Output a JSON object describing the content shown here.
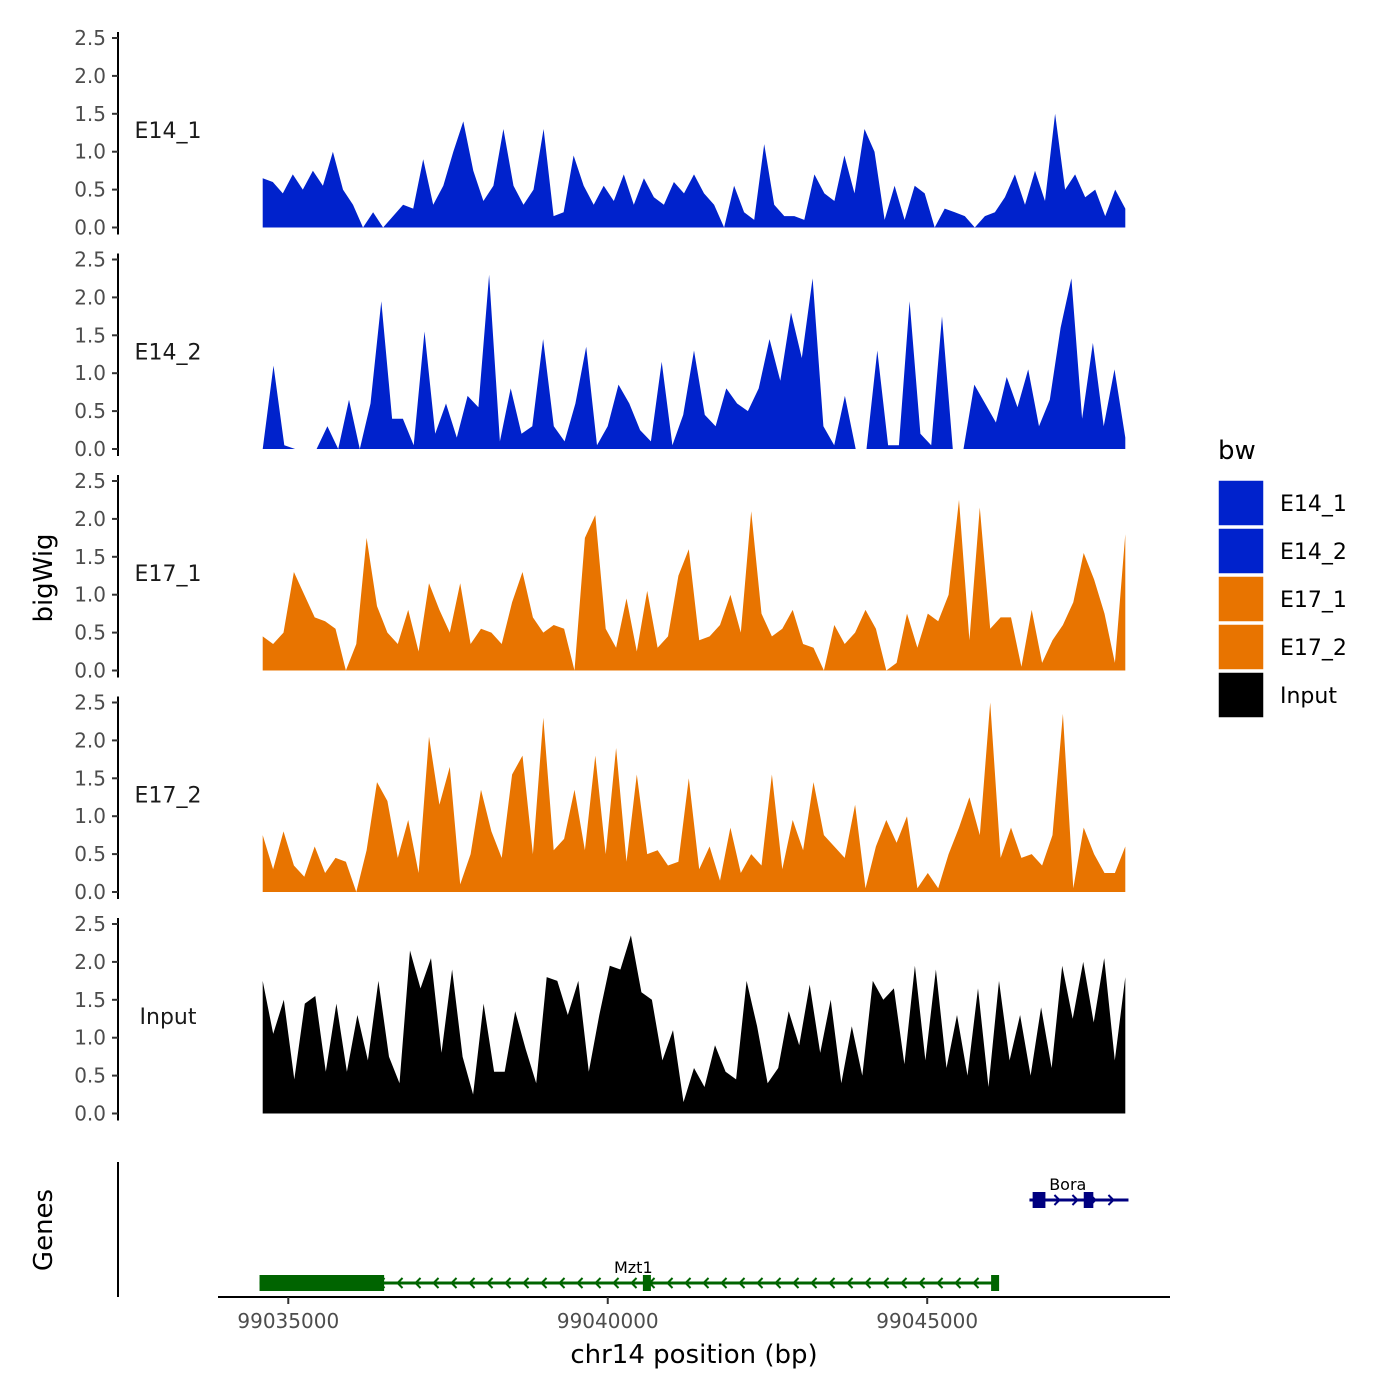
{
  "chart_data": {
    "type": "area",
    "y_axis_title": "bigWig",
    "x_axis_title": "chr14 position (bp)",
    "genes_axis_title": "Genes",
    "xlim": [
      99033900,
      99048800
    ],
    "data_start": 99034600,
    "data_end": 99048100,
    "x_ticks": [
      99035000,
      99040000,
      99045000
    ],
    "x_tick_labels": [
      "99035000",
      "99040000",
      "99045000"
    ],
    "ylim": [
      0,
      2.5
    ],
    "y_ticks": [
      0.0,
      0.5,
      1.0,
      1.5,
      2.0,
      2.5
    ],
    "y_tick_labels": [
      "0.0",
      "0.5",
      "1.0",
      "1.5",
      "2.0",
      "2.5"
    ],
    "legend": {
      "title": "bw",
      "entries": [
        {
          "label": "E14_1",
          "color": "#0022CC"
        },
        {
          "label": "E14_2",
          "color": "#0022CC"
        },
        {
          "label": "E17_1",
          "color": "#E87400"
        },
        {
          "label": "E17_2",
          "color": "#E87400"
        },
        {
          "label": "Input",
          "color": "#000000"
        }
      ]
    },
    "series": [
      {
        "name": "E14_1",
        "color": "#0022CC",
        "values": [
          0.65,
          0.6,
          0.45,
          0.7,
          0.5,
          0.75,
          0.55,
          1.0,
          0.5,
          0.3,
          0,
          0.2,
          0,
          0.15,
          0.3,
          0.25,
          0.9,
          0.3,
          0.55,
          1.0,
          1.4,
          0.75,
          0.35,
          0.55,
          1.3,
          0.55,
          0.3,
          0.5,
          1.3,
          0.15,
          0.2,
          0.95,
          0.55,
          0.3,
          0.55,
          0.35,
          0.7,
          0.3,
          0.65,
          0.4,
          0.3,
          0.6,
          0.45,
          0.7,
          0.45,
          0.3,
          0,
          0.55,
          0.2,
          0.1,
          1.1,
          0.3,
          0.15,
          0.15,
          0.1,
          0.7,
          0.45,
          0.35,
          0.95,
          0.45,
          1.3,
          1.0,
          0.1,
          0.55,
          0.1,
          0.55,
          0.45,
          0,
          0.25,
          0.2,
          0.15,
          0,
          0.15,
          0.2,
          0.4,
          0.7,
          0.3,
          0.75,
          0.35,
          1.5,
          0.5,
          0.7,
          0.4,
          0.5,
          0.15,
          0.5,
          0.25
        ]
      },
      {
        "name": "E14_2",
        "color": "#0022CC",
        "values": [
          0,
          1.1,
          0.05,
          0,
          0,
          0,
          0.3,
          0,
          0.65,
          0,
          0.6,
          1.95,
          0.4,
          0.4,
          0.05,
          1.55,
          0.2,
          0.6,
          0.15,
          0.7,
          0.55,
          2.3,
          0.1,
          0.8,
          0.2,
          0.3,
          1.45,
          0.3,
          0.1,
          0.6,
          1.35,
          0.05,
          0.3,
          0.85,
          0.6,
          0.25,
          0.1,
          1.15,
          0.05,
          0.45,
          1.3,
          0.45,
          0.3,
          0.8,
          0.6,
          0.5,
          0.8,
          1.45,
          0.9,
          1.8,
          1.2,
          2.25,
          0.3,
          0.05,
          0.7,
          0,
          0,
          1.3,
          0.05,
          0.05,
          1.95,
          0.2,
          0.05,
          1.75,
          0,
          0,
          0.85,
          0.6,
          0.35,
          0.95,
          0.55,
          1.05,
          0.3,
          0.65,
          1.6,
          2.25,
          0.4,
          1.4,
          0.3,
          1.05,
          0.15
        ]
      },
      {
        "name": "E17_1",
        "color": "#E87400",
        "values": [
          0.45,
          0.35,
          0.5,
          1.3,
          1.0,
          0.7,
          0.65,
          0.55,
          0,
          0.35,
          1.75,
          0.85,
          0.5,
          0.35,
          0.8,
          0.25,
          1.15,
          0.8,
          0.5,
          1.15,
          0.35,
          0.55,
          0.5,
          0.35,
          0.9,
          1.3,
          0.7,
          0.5,
          0.6,
          0.55,
          0,
          1.75,
          2.05,
          0.55,
          0.3,
          0.95,
          0.25,
          1.05,
          0.3,
          0.45,
          1.25,
          1.6,
          0.4,
          0.45,
          0.6,
          1.0,
          0.5,
          2.1,
          0.75,
          0.45,
          0.55,
          0.8,
          0.35,
          0.3,
          0,
          0.6,
          0.35,
          0.5,
          0.8,
          0.55,
          0,
          0.1,
          0.75,
          0.3,
          0.75,
          0.65,
          1.0,
          2.25,
          0.4,
          2.15,
          0.55,
          0.7,
          0.7,
          0.05,
          0.8,
          0.1,
          0.4,
          0.6,
          0.9,
          1.55,
          1.2,
          0.75,
          0.1,
          1.8
        ]
      },
      {
        "name": "E17_2",
        "color": "#E87400",
        "values": [
          0.75,
          0.3,
          0.8,
          0.35,
          0.2,
          0.6,
          0.25,
          0.45,
          0.4,
          0,
          0.55,
          1.45,
          1.2,
          0.45,
          0.95,
          0.25,
          2.05,
          1.15,
          1.65,
          0.1,
          0.5,
          1.35,
          0.8,
          0.45,
          1.55,
          1.8,
          0.5,
          2.3,
          0.55,
          0.7,
          1.35,
          0.55,
          1.8,
          0.5,
          1.9,
          0.4,
          1.55,
          0.5,
          0.55,
          0.35,
          0.4,
          1.5,
          0.3,
          0.6,
          0.15,
          0.85,
          0.25,
          0.5,
          0.35,
          1.55,
          0.3,
          0.95,
          0.55,
          1.45,
          0.75,
          0.6,
          0.45,
          1.15,
          0.05,
          0.6,
          0.95,
          0.65,
          1.0,
          0.05,
          0.25,
          0.05,
          0.5,
          0.85,
          1.25,
          0.75,
          2.5,
          0.45,
          0.85,
          0.45,
          0.5,
          0.35,
          0.75,
          2.35,
          0.05,
          0.85,
          0.5,
          0.25,
          0.25,
          0.6
        ]
      },
      {
        "name": "Input",
        "color": "#000000",
        "values": [
          1.75,
          1.05,
          1.5,
          0.45,
          1.45,
          1.55,
          0.55,
          1.45,
          0.55,
          1.3,
          0.7,
          1.75,
          0.75,
          0.4,
          2.15,
          1.65,
          2.05,
          0.8,
          1.9,
          0.75,
          0.25,
          1.45,
          0.55,
          0.55,
          1.35,
          0.85,
          0.4,
          1.8,
          1.75,
          1.3,
          1.75,
          0.55,
          1.3,
          1.95,
          1.9,
          2.35,
          1.6,
          1.5,
          0.7,
          1.1,
          0.15,
          0.6,
          0.35,
          0.9,
          0.55,
          0.45,
          1.75,
          1.15,
          0.4,
          0.6,
          1.35,
          0.9,
          1.7,
          0.8,
          1.5,
          0.4,
          1.15,
          0.5,
          1.75,
          1.5,
          1.65,
          0.65,
          1.95,
          0.7,
          1.9,
          0.6,
          1.3,
          0.5,
          1.65,
          0.35,
          1.75,
          0.7,
          1.3,
          0.5,
          1.4,
          0.6,
          1.95,
          1.25,
          2.0,
          1.2,
          2.05,
          0.7,
          1.8
        ]
      }
    ],
    "genes": [
      {
        "name": "Bora",
        "strand": "+",
        "start": 99046600,
        "end": 99048150,
        "color": "#000080",
        "row": 1,
        "blocks": [
          [
            99046650,
            99046850
          ],
          [
            99047450,
            99047600
          ]
        ]
      },
      {
        "name": "Mzt1",
        "strand": "-",
        "start": 99034550,
        "end": 99046100,
        "color": "#006400",
        "row": 2,
        "blocks": [
          [
            99034550,
            99036500
          ],
          [
            99040550,
            99040650
          ],
          [
            99046000,
            99046100
          ]
        ]
      }
    ]
  }
}
